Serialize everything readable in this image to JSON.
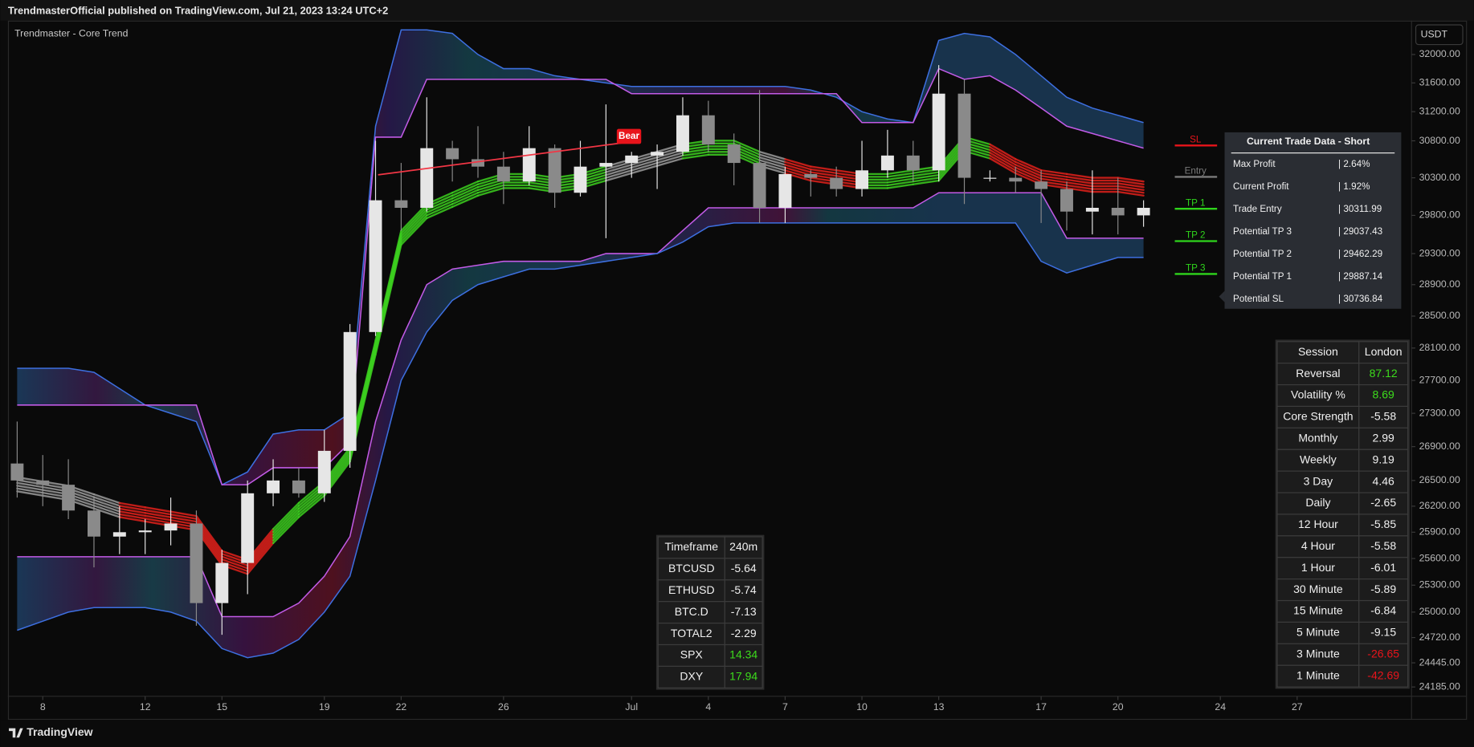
{
  "header": {
    "text": "TrendmasterOfficial published on TradingView.com, Jul 21, 2023 13:24 UTC+2"
  },
  "indicator_label": "Trendmaster - Core Trend",
  "currency": "USDT",
  "footer": {
    "brand": "TradingView"
  },
  "chart_data": {
    "type": "candlestick",
    "log_scale": true,
    "grid": false,
    "xlim": [
      6.64,
      61.47
    ],
    "ylim": [
      24085,
      32483
    ],
    "xticks": [
      8,
      12,
      15,
      19,
      22,
      26,
      {
        "value": 31,
        "label": "Jul"
      },
      {
        "value": 34,
        "label": "4"
      },
      {
        "value": 37,
        "label": "7"
      },
      {
        "value": 40,
        "label": "10"
      },
      {
        "value": 43,
        "label": "13"
      },
      {
        "value": 47,
        "label": "17"
      },
      {
        "value": 50,
        "label": "20"
      },
      {
        "value": 54,
        "label": "24"
      },
      {
        "value": 57,
        "label": "27"
      }
    ],
    "yticks": [
      {
        "value": 32000,
        "label": "32000.00"
      },
      {
        "value": 31600,
        "label": "31600.00"
      },
      {
        "value": 31200,
        "label": "31200.00"
      },
      {
        "value": 30800,
        "label": "30800.00"
      },
      {
        "value": 30300,
        "label": "30300.00"
      },
      {
        "value": 29800,
        "label": "29800.00"
      },
      {
        "value": 29300,
        "label": "29300.00"
      },
      {
        "value": 28900,
        "label": "28900.00"
      },
      {
        "value": 28500,
        "label": "28500.00"
      },
      {
        "value": 28100,
        "label": "28100.00"
      },
      {
        "value": 27700,
        "label": "27700.00"
      },
      {
        "value": 27300,
        "label": "27300.00"
      },
      {
        "value": 26900,
        "label": "26900.00"
      },
      {
        "value": 26500,
        "label": "26500.00"
      },
      {
        "value": 26200,
        "label": "26200.00"
      },
      {
        "value": 25900,
        "label": "25900.00"
      },
      {
        "value": 25600,
        "label": "25600.00"
      },
      {
        "value": 25300,
        "label": "25300.00"
      },
      {
        "value": 25000,
        "label": "25000.00"
      },
      {
        "value": 24720,
        "label": "24720.00"
      },
      {
        "value": 24445,
        "label": "24445.00"
      },
      {
        "value": 24185,
        "label": "24185.00"
      }
    ],
    "x": [
      7,
      8,
      9,
      10,
      11,
      12,
      13,
      14,
      15,
      16,
      17,
      18,
      19,
      20,
      21,
      22,
      23,
      24,
      25,
      26,
      27,
      28,
      29,
      30,
      31,
      32,
      33,
      34,
      35,
      36,
      37,
      38,
      39,
      40,
      41,
      42,
      43,
      44,
      45,
      46,
      47,
      48,
      49,
      50,
      51
    ],
    "open": [
      26700,
      26500,
      26450,
      26150,
      25850,
      25900,
      25920,
      26000,
      25100,
      25550,
      26350,
      26500,
      26350,
      26850,
      28300,
      30000,
      29900,
      30700,
      30550,
      30450,
      30250,
      30700,
      30100,
      30450,
      30500,
      30600,
      30650,
      31150,
      30750,
      30500,
      29900,
      30350,
      30300,
      30150,
      30400,
      30600,
      30400,
      31450,
      30300,
      30300,
      30250,
      30150,
      29850,
      29900,
      29800
    ],
    "high": [
      27200,
      26800,
      26750,
      26300,
      26200,
      26050,
      26300,
      26150,
      25700,
      26500,
      26750,
      26650,
      27100,
      28400,
      30800,
      30500,
      31400,
      30800,
      31000,
      30650,
      31000,
      30750,
      30800,
      31300,
      30650,
      30750,
      31400,
      31350,
      30900,
      31500,
      30450,
      30400,
      30450,
      30800,
      30950,
      30800,
      31850,
      31650,
      30400,
      30450,
      30400,
      30250,
      30400,
      30300,
      30000
    ],
    "low": [
      26300,
      26200,
      26050,
      25500,
      25650,
      25650,
      25750,
      24850,
      24750,
      25200,
      26200,
      26300,
      26250,
      26650,
      28250,
      29600,
      29850,
      30250,
      30300,
      29950,
      30200,
      29900,
      30050,
      29500,
      30300,
      30150,
      30600,
      30650,
      30200,
      29700,
      29700,
      30050,
      30050,
      30050,
      30300,
      30250,
      30250,
      29950,
      30250,
      30100,
      29700,
      29600,
      29550,
      29550,
      29650
    ],
    "close": [
      26500,
      26450,
      26150,
      25850,
      25900,
      25920,
      26000,
      25100,
      25550,
      26350,
      26500,
      26350,
      26850,
      28300,
      30000,
      29900,
      30700,
      30550,
      30450,
      30250,
      30700,
      30100,
      30450,
      30500,
      30600,
      30650,
      31150,
      30750,
      30500,
      29900,
      30350,
      30300,
      30150,
      30400,
      30600,
      30400,
      31450,
      30300,
      30300,
      30250,
      30150,
      29850,
      29900,
      29800,
      29900
    ],
    "up_color": "#e6e6e6",
    "down_color": "#8a8a8a",
    "trend": {
      "values": [
        26450,
        26400,
        26350,
        26250,
        26150,
        26100,
        26050,
        26000,
        25600,
        25500,
        25850,
        26150,
        26400,
        26800,
        28100,
        29500,
        29850,
        30000,
        30150,
        30250,
        30250,
        30200,
        30250,
        30350,
        30450,
        30550,
        30650,
        30700,
        30700,
        30550,
        30450,
        30350,
        30300,
        30250,
        30250,
        30300,
        30350,
        30750,
        30650,
        30450,
        30300,
        30250,
        30200,
        30200,
        30150
      ],
      "colors": [
        "#9a9a9a",
        "#9a9a9a",
        "#9a9a9a",
        "#9a9a9a",
        "#e0211b",
        "#e0211b",
        "#e0211b",
        "#e0211b",
        "#e0211b",
        "#e0211b",
        "#3ccf1e",
        "#3ccf1e",
        "#3ccf1e",
        "#3ccf1e",
        "#3ccf1e",
        "#3ccf1e",
        "#3ccf1e",
        "#3ccf1e",
        "#3ccf1e",
        "#3ccf1e",
        "#3ccf1e",
        "#3ccf1e",
        "#3ccf1e",
        "#9a9a9a",
        "#9a9a9a",
        "#9a9a9a",
        "#3ccf1e",
        "#3ccf1e",
        "#3ccf1e",
        "#9a9a9a",
        "#e0211b",
        "#e0211b",
        "#e0211b",
        "#3ccf1e",
        "#3ccf1e",
        "#3ccf1e",
        "#3ccf1e",
        "#3ccf1e",
        "#e0211b",
        "#e0211b",
        "#e0211b",
        "#e0211b",
        "#e0211b",
        "#e0211b",
        "#e0211b"
      ]
    },
    "bands": {
      "outer_color": "#3d6fe0",
      "inner_color": "#c25be6",
      "upper_outer": [
        27850,
        27850,
        27850,
        27800,
        27600,
        27400,
        27300,
        27200,
        26450,
        26600,
        27050,
        27100,
        27100,
        27300,
        31000,
        32350,
        32350,
        32300,
        32000,
        31800,
        31800,
        31700,
        31650,
        31600,
        31550,
        31550,
        31550,
        31550,
        31550,
        31550,
        31550,
        31500,
        31400,
        31200,
        31100,
        31050,
        32200,
        32300,
        32250,
        32000,
        31700,
        31400,
        31250,
        31150,
        31050
      ],
      "upper_inner": [
        27400,
        27400,
        27400,
        27400,
        27400,
        27400,
        27400,
        27400,
        26450,
        26450,
        26650,
        26650,
        26650,
        26950,
        30850,
        30850,
        31650,
        31650,
        31650,
        31650,
        31650,
        31650,
        31650,
        31650,
        31450,
        31450,
        31450,
        31450,
        31450,
        31450,
        31450,
        31450,
        31450,
        31050,
        31050,
        31050,
        31800,
        31650,
        31700,
        31500,
        31250,
        31000,
        30900,
        30800,
        30700
      ],
      "lower_inner": [
        25620,
        25620,
        25620,
        25620,
        25620,
        25620,
        25620,
        25620,
        24950,
        24950,
        24950,
        25100,
        25400,
        25850,
        27200,
        28200,
        28900,
        29100,
        29150,
        29200,
        29200,
        29200,
        29200,
        29300,
        29300,
        29300,
        29600,
        29900,
        29900,
        29900,
        29900,
        29900,
        29900,
        29900,
        29900,
        29900,
        30100,
        30100,
        30100,
        30100,
        30100,
        29500,
        29500,
        29500,
        29500
      ],
      "lower_outer": [
        24800,
        24900,
        25000,
        25050,
        25050,
        25050,
        25000,
        24900,
        24600,
        24500,
        24550,
        24700,
        25000,
        25400,
        26500,
        27700,
        28300,
        28700,
        28900,
        29000,
        29100,
        29100,
        29150,
        29200,
        29250,
        29300,
        29450,
        29650,
        29700,
        29700,
        29700,
        29700,
        29700,
        29700,
        29700,
        29700,
        29700,
        29700,
        29700,
        29700,
        29200,
        29050,
        29150,
        29250,
        29250
      ]
    },
    "trendline": {
      "x": [
        21.1,
        30.6
      ],
      "values": [
        30340,
        30770
      ],
      "color": "#f23645"
    },
    "annotation": {
      "text": "Bear",
      "x": 30.9,
      "value": 30860,
      "color": "#e8141b"
    },
    "levels": [
      {
        "label": "SL",
        "value": 30736.84,
        "color": "#e8141b"
      },
      {
        "label": "Entry",
        "value": 30311.99,
        "color": "#7a7a7a"
      },
      {
        "label": "TP 1",
        "value": 29887.14,
        "color": "#2fd51c"
      },
      {
        "label": "TP 2",
        "value": 29462.29,
        "color": "#2fd51c"
      },
      {
        "label": "TP 3",
        "value": 29037.43,
        "color": "#2fd51c"
      }
    ]
  },
  "trade_table": {
    "title": "Current Trade Data - Short",
    "rows": [
      {
        "label": "Max Profit",
        "value": "| 2.64%"
      },
      {
        "label": "Current Profit",
        "value": "| 1.92%"
      },
      {
        "label": "Trade Entry",
        "value": "| 30311.99"
      },
      {
        "label": "Potential TP 3",
        "value": "| 29037.43"
      },
      {
        "label": "Potential TP 2",
        "value": "| 29462.29"
      },
      {
        "label": "Potential TP 1",
        "value": "| 29887.14"
      },
      {
        "label": "Potential SL",
        "value": "| 30736.84"
      }
    ]
  },
  "session_table": {
    "header": [
      "Session",
      "London"
    ],
    "rows": [
      {
        "label": "Reversal",
        "value": "87.12",
        "color": "#3ddc1c"
      },
      {
        "label": "Volatility %",
        "value": "8.69",
        "color": "#3ddc1c"
      },
      {
        "label": "Core Strength",
        "value": "-5.58"
      },
      {
        "label": "Monthly",
        "value": "2.99"
      },
      {
        "label": "Weekly",
        "value": "9.19"
      },
      {
        "label": "3 Day",
        "value": "4.46"
      },
      {
        "label": "Daily",
        "value": "-2.65"
      },
      {
        "label": "12 Hour",
        "value": "-5.85"
      },
      {
        "label": "4 Hour",
        "value": "-5.58"
      },
      {
        "label": "1 Hour",
        "value": "-6.01"
      },
      {
        "label": "30 Minute",
        "value": "-5.89"
      },
      {
        "label": "15 Minute",
        "value": "-6.84"
      },
      {
        "label": "5 Minute",
        "value": "-9.15"
      },
      {
        "label": "3 Minute",
        "value": "-26.65",
        "color": "#e8141b"
      },
      {
        "label": "1 Minute",
        "value": "-42.69",
        "color": "#e8141b"
      }
    ]
  },
  "timeframe_table": {
    "header": [
      "Timeframe",
      "240m"
    ],
    "rows": [
      {
        "label": "BTCUSD",
        "value": "-5.64"
      },
      {
        "label": "ETHUSD",
        "value": "-5.74"
      },
      {
        "label": "BTC.D",
        "value": "-7.13"
      },
      {
        "label": "TOTAL2",
        "value": "-2.29"
      },
      {
        "label": "SPX",
        "value": "14.34",
        "color": "#3ddc1c"
      },
      {
        "label": "DXY",
        "value": "17.94",
        "color": "#3ddc1c"
      }
    ]
  }
}
